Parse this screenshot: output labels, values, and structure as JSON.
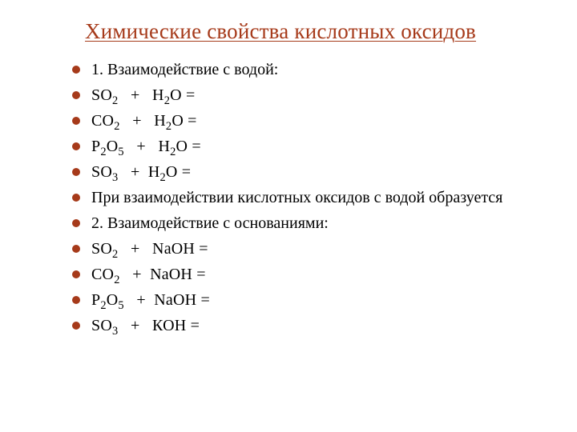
{
  "slide": {
    "title": "Химические свойства кислотных оксидов",
    "title_color": "#a63a1a",
    "bullet_color": "#a63a1a",
    "text_color": "#000000",
    "title_fontsize": 27,
    "body_fontsize": 20,
    "background_color": "#ffffff",
    "items": [
      {
        "type": "text",
        "value": "1. Взаимодействие с водой:"
      },
      {
        "type": "formula",
        "tokens": [
          "SO",
          "_2",
          "   +   H",
          "_2",
          "O = "
        ]
      },
      {
        "type": "formula",
        "tokens": [
          "CO",
          "_2",
          "   +   H",
          "_2",
          "O = "
        ]
      },
      {
        "type": "formula",
        "tokens": [
          "P",
          "_2",
          "O",
          "_5",
          "   +   H",
          "_2",
          "O = "
        ]
      },
      {
        "type": "formula",
        "tokens": [
          "SO",
          "_3",
          "   +  H",
          "_2",
          "O = "
        ]
      },
      {
        "type": "text",
        "value": "При взаимодействии кислотных оксидов с водой образуется"
      },
      {
        "type": "text",
        "value": "2. Взаимодействие с основаниями:"
      },
      {
        "type": "formula",
        "tokens": [
          "SO",
          "_2",
          "   +   NaOH = "
        ]
      },
      {
        "type": "formula",
        "tokens": [
          "CO",
          "_2",
          "   +  NaOH = "
        ]
      },
      {
        "type": "formula",
        "tokens": [
          "P",
          "_2",
          "O",
          "_5",
          "   +  NaOH = "
        ]
      },
      {
        "type": "formula",
        "tokens": [
          "SO",
          "_3",
          "   +   КОН = "
        ]
      }
    ]
  }
}
